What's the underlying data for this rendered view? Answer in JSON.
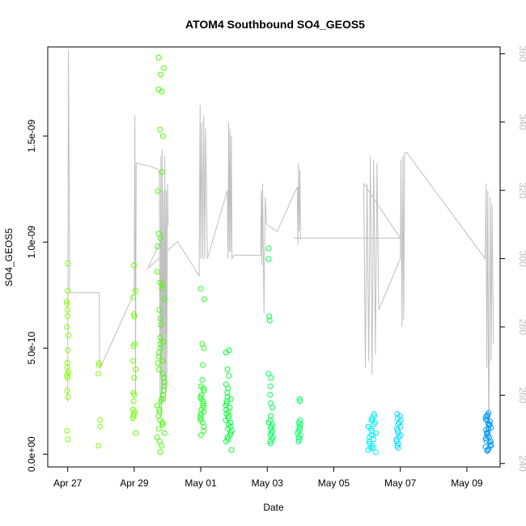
{
  "chart_data": {
    "type": "scatter",
    "title": "ATOM4 Southbound SO4_GEOS5",
    "xlabel": "Date",
    "ylabel": "SO4_GEOS5",
    "x_ticks": [
      {
        "label": "Apr 27",
        "day": 0
      },
      {
        "label": "Apr 29",
        "day": 2
      },
      {
        "label": "May 01",
        "day": 4
      },
      {
        "label": "May 03",
        "day": 6
      },
      {
        "label": "May 05",
        "day": 8
      },
      {
        "label": "May 07",
        "day": 10
      },
      {
        "label": "May 09",
        "day": 12
      }
    ],
    "xlim_days": [
      -0.6,
      13.0
    ],
    "y_ticks": [
      {
        "label": "0.0e+00",
        "value": 0
      },
      {
        "label": "5.0e-10",
        "value": 5e-10
      },
      {
        "label": "1.0e-09",
        "value": 1e-09
      },
      {
        "label": "1.5e-09",
        "value": 1.5e-09
      }
    ],
    "ylim": [
      -6e-11,
      1.92e-09
    ],
    "y2_ticks": [
      {
        "label": "240",
        "value": 240
      },
      {
        "label": "260",
        "value": 260
      },
      {
        "label": "280",
        "value": 280
      },
      {
        "label": "300",
        "value": 300
      },
      {
        "label": "320",
        "value": 320
      },
      {
        "label": "340",
        "value": 340
      },
      {
        "label": "360",
        "value": 360
      }
    ],
    "y2lim": [
      239,
      362
    ],
    "grid": false,
    "legend": "none",
    "colors": {
      "overlay_line": "#bfbfbf",
      "point_palette": [
        "#7fff00",
        "#44ff00",
        "#00ff3a",
        "#00ff6e",
        "#00ffcc",
        "#00e5ff",
        "#0099ff"
      ]
    },
    "point_clusters": [
      {
        "day": 0.0,
        "spread": 0.03,
        "color": "#7fff00",
        "values": [
          9e-10,
          7.7e-10,
          7.2e-10,
          7.1e-10,
          6.8e-10,
          6.5e-10,
          6e-10,
          5.6e-10,
          4.9e-10,
          4.3e-10,
          4.1e-10,
          3.9e-10,
          3.8e-10,
          3.7e-10,
          3.6e-10,
          3e-10,
          2.7e-10,
          1.1e-10,
          7e-11
        ]
      },
      {
        "day": 0.95,
        "spread": 0.03,
        "color": "#7fff00",
        "values": [
          4.3e-10,
          4.2e-10,
          3.8e-10,
          1.6e-10,
          1.3e-10,
          4e-11
        ]
      },
      {
        "day": 2.0,
        "spread": 0.05,
        "color": "#66ff00",
        "values": [
          8.9e-10,
          7.7e-10,
          7.4e-10,
          6.6e-10,
          6.5e-10,
          5.2e-10,
          5.1e-10,
          4.4e-10,
          4e-10,
          3.6e-10,
          2.9e-10,
          2.8e-10,
          2.5e-10,
          2.1e-10,
          2e-10,
          1.9e-10,
          1.8e-10,
          1.7e-10,
          1e-10
        ]
      },
      {
        "day": 2.8,
        "spread": 0.12,
        "color": "#44ff00",
        "values": [
          1.87e-09,
          1.82e-09,
          1.79e-09,
          1.72e-09,
          1.71e-09,
          1.53e-09,
          1.5e-09,
          1.33e-09,
          1.24e-09,
          1.04e-09,
          1.02e-09,
          9.8e-10,
          8.6e-10,
          8.1e-10,
          8e-10,
          7.8e-10,
          7.3e-10,
          6.8e-10,
          6.4e-10,
          6.1e-10,
          5.5e-10,
          5.3e-10,
          5.2e-10,
          5e-10,
          4.8e-10,
          4.6e-10,
          4.4e-10,
          4.3e-10,
          4e-10,
          3.8e-10,
          3.6e-10,
          3.4e-10,
          3.2e-10,
          3e-10,
          2.8e-10,
          2.6e-10,
          2.5e-10,
          2.3e-10,
          2.1e-10,
          2e-10,
          1.8e-10,
          1.6e-10,
          1.5e-10,
          1.4e-10,
          1.2e-10,
          1e-10,
          8e-11,
          6e-11,
          4e-11,
          1e-11
        ]
      },
      {
        "day": 4.05,
        "spread": 0.06,
        "color": "#22ff22",
        "values": [
          7.8e-10,
          7.3e-10,
          5.2e-10,
          5e-10,
          4.2e-10,
          3.5e-10,
          3.2e-10,
          3.1e-10,
          3e-10,
          2.8e-10,
          2.7e-10,
          2.6e-10,
          2.5e-10,
          2.4e-10,
          2.3e-10,
          2.2e-10,
          2.1e-10,
          2e-10,
          1.9e-10,
          1.8e-10,
          1.7e-10,
          1.6e-10,
          1.5e-10,
          1.3e-10,
          1.1e-10,
          9e-11
        ]
      },
      {
        "day": 4.85,
        "spread": 0.1,
        "color": "#00ff33",
        "values": [
          4.9e-10,
          4.8e-10,
          4e-10,
          3.7e-10,
          3.3e-10,
          3.1e-10,
          2.9e-10,
          2.7e-10,
          2.6e-10,
          2.5e-10,
          2.4e-10,
          2.3e-10,
          2.2e-10,
          2.1e-10,
          2e-10,
          1.9e-10,
          1.8e-10,
          1.7e-10,
          1.6e-10,
          1.5e-10,
          1.4e-10,
          1.3e-10,
          1.2e-10,
          1.1e-10,
          1e-10,
          9e-11,
          8e-11,
          7e-11,
          6e-11,
          2e-11
        ]
      },
      {
        "day": 6.1,
        "spread": 0.07,
        "color": "#00ff55",
        "values": [
          9.7e-10,
          9.2e-10,
          6.5e-10,
          6.3e-10,
          3.8e-10,
          3.6e-10,
          3.2e-10,
          2.8e-10,
          2.4e-10,
          2.2e-10,
          1.8e-10,
          1.6e-10,
          1.5e-10,
          1.4e-10,
          1.3e-10,
          1.2e-10,
          1.1e-10,
          1e-10,
          9e-11,
          8e-11,
          7e-11,
          6e-11,
          5e-11
        ]
      },
      {
        "day": 6.95,
        "spread": 0.05,
        "color": "#00ff66",
        "values": [
          2.6e-10,
          2.5e-10,
          1.6e-10,
          1.5e-10,
          1.4e-10,
          1.3e-10,
          1.2e-10,
          1.1e-10,
          1e-10,
          9e-11,
          8e-11,
          7e-11,
          6e-11
        ]
      },
      {
        "day": 9.15,
        "spread": 0.12,
        "color": "#00f0f0",
        "values": [
          1.9e-10,
          1.8e-10,
          1.7e-10,
          1.6e-10,
          1.5e-10,
          1.4e-10,
          1.3e-10,
          1.2e-10,
          1.1e-10,
          1e-10,
          9e-11,
          8e-11,
          7e-11,
          6e-11,
          5e-11,
          4e-11,
          3e-11,
          2e-11,
          1e-11,
          1.6e-10,
          1.3e-10,
          9e-11,
          6e-11,
          3e-11
        ]
      },
      {
        "day": 9.95,
        "spread": 0.08,
        "color": "#00ddff",
        "values": [
          1.9e-10,
          1.8e-10,
          1.7e-10,
          1.6e-10,
          1.5e-10,
          1.4e-10,
          1.3e-10,
          1.2e-10,
          1.1e-10,
          1e-10,
          9e-11,
          8e-11,
          7e-11,
          6e-11,
          5e-11,
          4e-11,
          3e-11
        ]
      },
      {
        "day": 12.65,
        "spread": 0.09,
        "color": "#0099ff",
        "values": [
          1.95e-10,
          1.85e-10,
          1.75e-10,
          1.65e-10,
          1.55e-10,
          1.45e-10,
          1.35e-10,
          1.25e-10,
          1.15e-10,
          1.05e-10,
          9.5e-11,
          8.5e-11,
          7.5e-11,
          6.5e-11,
          5.5e-11,
          4.5e-11,
          3.5e-11,
          2.5e-11,
          1.5e-11,
          1.8e-10,
          1.6e-10,
          1.4e-10,
          1.2e-10,
          1e-10,
          8e-11,
          6e-11,
          4e-11,
          2e-11
        ]
      }
    ],
    "overlay_series": {
      "axis": "right",
      "points": [
        [
          0.0,
          258
        ],
        [
          0.02,
          361
        ],
        [
          0.04,
          330
        ],
        [
          0.06,
          290
        ],
        [
          0.5,
          290
        ],
        [
          0.95,
          290
        ],
        [
          0.96,
          270
        ],
        [
          0.98,
          268
        ],
        [
          2.0,
          290
        ],
        [
          2.02,
          342
        ],
        [
          2.04,
          260
        ],
        [
          2.06,
          328
        ],
        [
          2.5,
          327
        ],
        [
          2.75,
          326
        ],
        [
          2.78,
          256
        ],
        [
          2.8,
          330
        ],
        [
          2.82,
          254
        ],
        [
          2.84,
          332
        ],
        [
          2.86,
          258
        ],
        [
          2.88,
          320
        ],
        [
          2.9,
          262
        ],
        [
          2.92,
          330
        ],
        [
          2.94,
          258
        ],
        [
          2.96,
          320
        ],
        [
          2.98,
          262
        ],
        [
          3.0,
          322
        ],
        [
          3.02,
          310
        ],
        [
          2.4,
          297
        ],
        [
          3.3,
          305
        ],
        [
          3.95,
          295
        ],
        [
          3.98,
          345
        ],
        [
          4.0,
          300
        ],
        [
          4.03,
          340
        ],
        [
          4.06,
          300
        ],
        [
          4.09,
          342
        ],
        [
          4.12,
          300
        ],
        [
          4.15,
          338
        ],
        [
          4.2,
          300
        ],
        [
          4.8,
          320
        ],
        [
          4.82,
          300
        ],
        [
          4.84,
          340
        ],
        [
          4.86,
          302
        ],
        [
          4.88,
          338
        ],
        [
          4.9,
          302
        ],
        [
          4.92,
          336
        ],
        [
          4.94,
          300
        ],
        [
          5.0,
          301
        ],
        [
          5.8,
          301
        ],
        [
          5.82,
          320
        ],
        [
          5.84,
          298
        ],
        [
          5.86,
          322
        ],
        [
          5.9,
          284
        ],
        [
          5.94,
          318
        ],
        [
          5.98,
          310
        ],
        [
          6.3,
          308
        ],
        [
          6.9,
          321
        ],
        [
          6.92,
          304
        ],
        [
          6.94,
          328
        ],
        [
          6.96,
          308
        ],
        [
          6.98,
          326
        ],
        [
          7.0,
          306
        ],
        [
          6.8,
          306
        ],
        [
          8.5,
          306
        ],
        [
          10.0,
          306
        ],
        [
          8.9,
          322
        ],
        [
          8.95,
          268
        ],
        [
          9.0,
          322
        ],
        [
          9.05,
          270
        ],
        [
          9.1,
          330
        ],
        [
          9.15,
          266
        ],
        [
          9.2,
          329
        ],
        [
          9.25,
          272
        ],
        [
          9.3,
          328
        ],
        [
          9.35,
          285
        ],
        [
          10.0,
          300
        ],
        [
          10.02,
          329
        ],
        [
          10.05,
          280
        ],
        [
          10.08,
          330
        ],
        [
          10.1,
          282
        ],
        [
          10.13,
          331
        ],
        [
          10.2,
          331
        ],
        [
          12.55,
          300
        ],
        [
          12.58,
          322
        ],
        [
          12.6,
          268
        ],
        [
          12.63,
          320
        ],
        [
          12.66,
          245
        ],
        [
          12.7,
          318
        ],
        [
          12.73,
          270
        ],
        [
          12.76,
          316
        ],
        [
          12.8,
          275
        ]
      ]
    }
  }
}
